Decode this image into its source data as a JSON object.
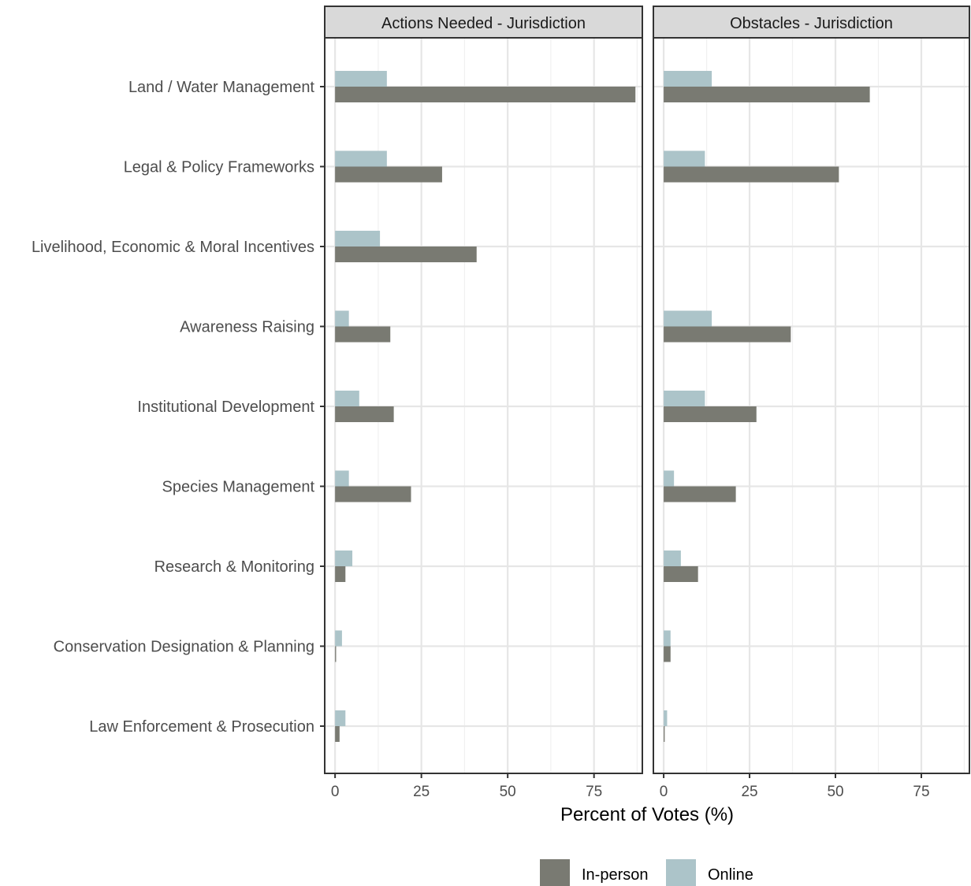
{
  "chart_data": {
    "type": "bar",
    "orientation": "horizontal",
    "xlabel": "Percent of Votes (%)",
    "ylabel": "",
    "xlim": [
      -3,
      89
    ],
    "x_ticks": [
      0,
      25,
      50,
      75
    ],
    "grid": true,
    "legend_position": "bottom",
    "categories": [
      "Land / Water Management",
      "Legal & Policy Frameworks",
      "Livelihood, Economic & Moral Incentives",
      "Awareness Raising",
      "Institutional Development",
      "Species Management",
      "Research & Monitoring",
      "Conservation Designation & Planning",
      "Law Enforcement & Prosecution"
    ],
    "legend": [
      {
        "name": "In-person",
        "color": "#797a72"
      },
      {
        "name": "Online",
        "color": "#acc4c9"
      }
    ],
    "panels": [
      {
        "title": "Actions Needed - Jurisdiction",
        "series": [
          {
            "name": "Online",
            "values": [
              15,
              15,
              13,
              4,
              7,
              4,
              5,
              2,
              3
            ]
          },
          {
            "name": "In-person",
            "values": [
              87,
              31,
              41,
              16,
              17,
              22,
              3,
              0.3,
              1.3
            ]
          }
        ]
      },
      {
        "title": "Obstacles - Jurisdiction",
        "series": [
          {
            "name": "Online",
            "values": [
              14,
              12,
              0,
              14,
              12,
              3,
              5,
              2,
              1
            ]
          },
          {
            "name": "In-person",
            "values": [
              60,
              51,
              0,
              37,
              27,
              21,
              10,
              2,
              0.3
            ]
          }
        ]
      }
    ]
  }
}
